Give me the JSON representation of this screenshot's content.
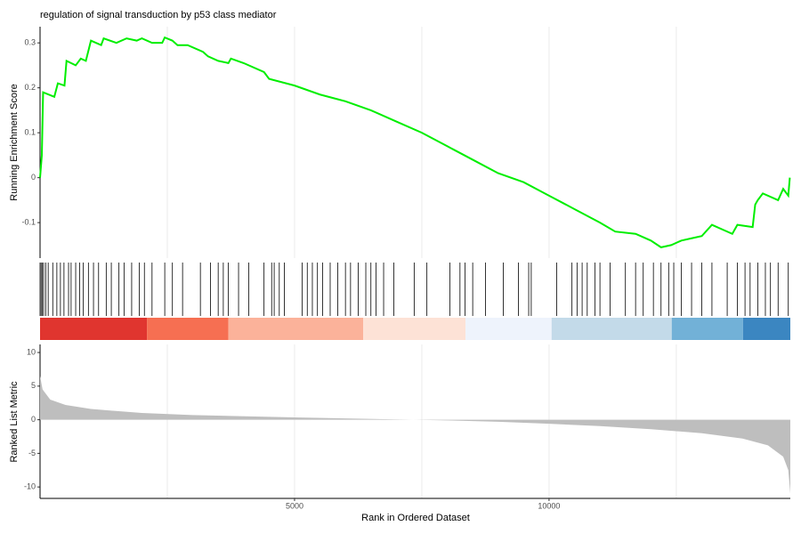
{
  "chart_data": [
    {
      "type": "line",
      "title": "regulation of signal transduction by p53 class mediator",
      "y_label": "Running Enrichment Score",
      "color": "#00ee00",
      "x": [
        0,
        35,
        60,
        280,
        350,
        480,
        520,
        700,
        800,
        900,
        1000,
        1200,
        1250,
        1500,
        1700,
        1900,
        2000,
        2200,
        2400,
        2450,
        2600,
        2700,
        2900,
        3200,
        3300,
        3500,
        3700,
        3750,
        4000,
        4400,
        4500,
        5000,
        5500,
        6000,
        6500,
        7000,
        7500,
        8000,
        8500,
        9000,
        9500,
        10000,
        10500,
        11000,
        11300,
        11700,
        12000,
        12200,
        12400,
        12600,
        12800,
        13000,
        13200,
        13600,
        13700,
        14000,
        14050,
        14100,
        14200,
        14500,
        14600,
        14700,
        14730
      ],
      "values": [
        0,
        0.05,
        0.19,
        0.18,
        0.21,
        0.205,
        0.26,
        0.25,
        0.265,
        0.26,
        0.305,
        0.295,
        0.31,
        0.3,
        0.31,
        0.305,
        0.31,
        0.3,
        0.3,
        0.312,
        0.305,
        0.295,
        0.295,
        0.28,
        0.27,
        0.26,
        0.255,
        0.265,
        0.255,
        0.235,
        0.22,
        0.205,
        0.185,
        0.17,
        0.15,
        0.125,
        0.1,
        0.07,
        0.04,
        0.01,
        -0.01,
        -0.04,
        -0.07,
        -0.1,
        -0.12,
        -0.125,
        -0.14,
        -0.155,
        -0.15,
        -0.14,
        -0.135,
        -0.13,
        -0.105,
        -0.125,
        -0.105,
        -0.11,
        -0.06,
        -0.05,
        -0.035,
        -0.05,
        -0.025,
        -0.04,
        0
      ],
      "xlim": [
        0,
        14740
      ],
      "ylim": [
        -0.179,
        0.336
      ],
      "yticks": [
        -0.1,
        0.0,
        0.1,
        0.2,
        0.3
      ],
      "x_grid": [
        2500,
        5000,
        7500,
        10000,
        12500
      ]
    },
    {
      "type": "rug",
      "xlim": [
        0,
        14740
      ],
      "hits": [
        0,
        20,
        45,
        70,
        110,
        160,
        250,
        330,
        400,
        470,
        560,
        610,
        700,
        780,
        850,
        950,
        1050,
        1150,
        1300,
        1400,
        1550,
        1650,
        1800,
        1950,
        2050,
        2200,
        2450,
        2600,
        2800,
        3150,
        3350,
        3500,
        3600,
        3700,
        3900,
        4100,
        4400,
        4550,
        4600,
        4700,
        4800,
        5150,
        5250,
        5350,
        5450,
        5550,
        5700,
        5850,
        6000,
        6100,
        6250,
        6400,
        6500,
        6600,
        6750,
        6950,
        7350,
        7600,
        8050,
        8250,
        8350,
        8500,
        8750,
        9100,
        9400,
        9600,
        9650,
        10150,
        10450,
        10550,
        10650,
        10750,
        10900,
        11000,
        11200,
        11500,
        11700,
        11850,
        12050,
        12200,
        12350,
        12450,
        12600,
        12800,
        13000,
        13200,
        13500,
        13700,
        13850,
        13950,
        14100,
        14250,
        14350,
        14500,
        14700
      ],
      "color_bar": {
        "breaks": [
          0,
          2100,
          3700,
          6350,
          8360,
          10050,
          12410,
          13810,
          14740
        ],
        "colors": [
          "#e0352f",
          "#f66f52",
          "#fbb29a",
          "#fde2d6",
          "#eef3fc",
          "#c3dae9",
          "#72b1d7",
          "#3b86c1"
        ]
      }
    },
    {
      "type": "area",
      "y_label": "Ranked List Metric",
      "x_label": "Rank in Ordered Dataset",
      "color": "#bebebe",
      "x": [
        0,
        50,
        200,
        500,
        1000,
        2000,
        3000,
        5000,
        7000,
        8000,
        9000,
        10000,
        11000,
        12000,
        13000,
        13800,
        14300,
        14600,
        14700,
        14740
      ],
      "values": [
        6.5,
        4.5,
        3,
        2.2,
        1.6,
        1.0,
        0.7,
        0.35,
        0.05,
        -0.1,
        -0.3,
        -0.6,
        -0.95,
        -1.4,
        -2.0,
        -2.8,
        -3.8,
        -5.5,
        -7.5,
        -11
      ],
      "xlim": [
        0,
        14740
      ],
      "ylim": [
        -11.7,
        11.2
      ],
      "yticks": [
        -10,
        -5,
        0,
        5,
        10
      ],
      "xticks": [
        5000,
        10000
      ],
      "x_grid": [
        2500,
        5000,
        7500,
        10000,
        12500
      ]
    }
  ]
}
